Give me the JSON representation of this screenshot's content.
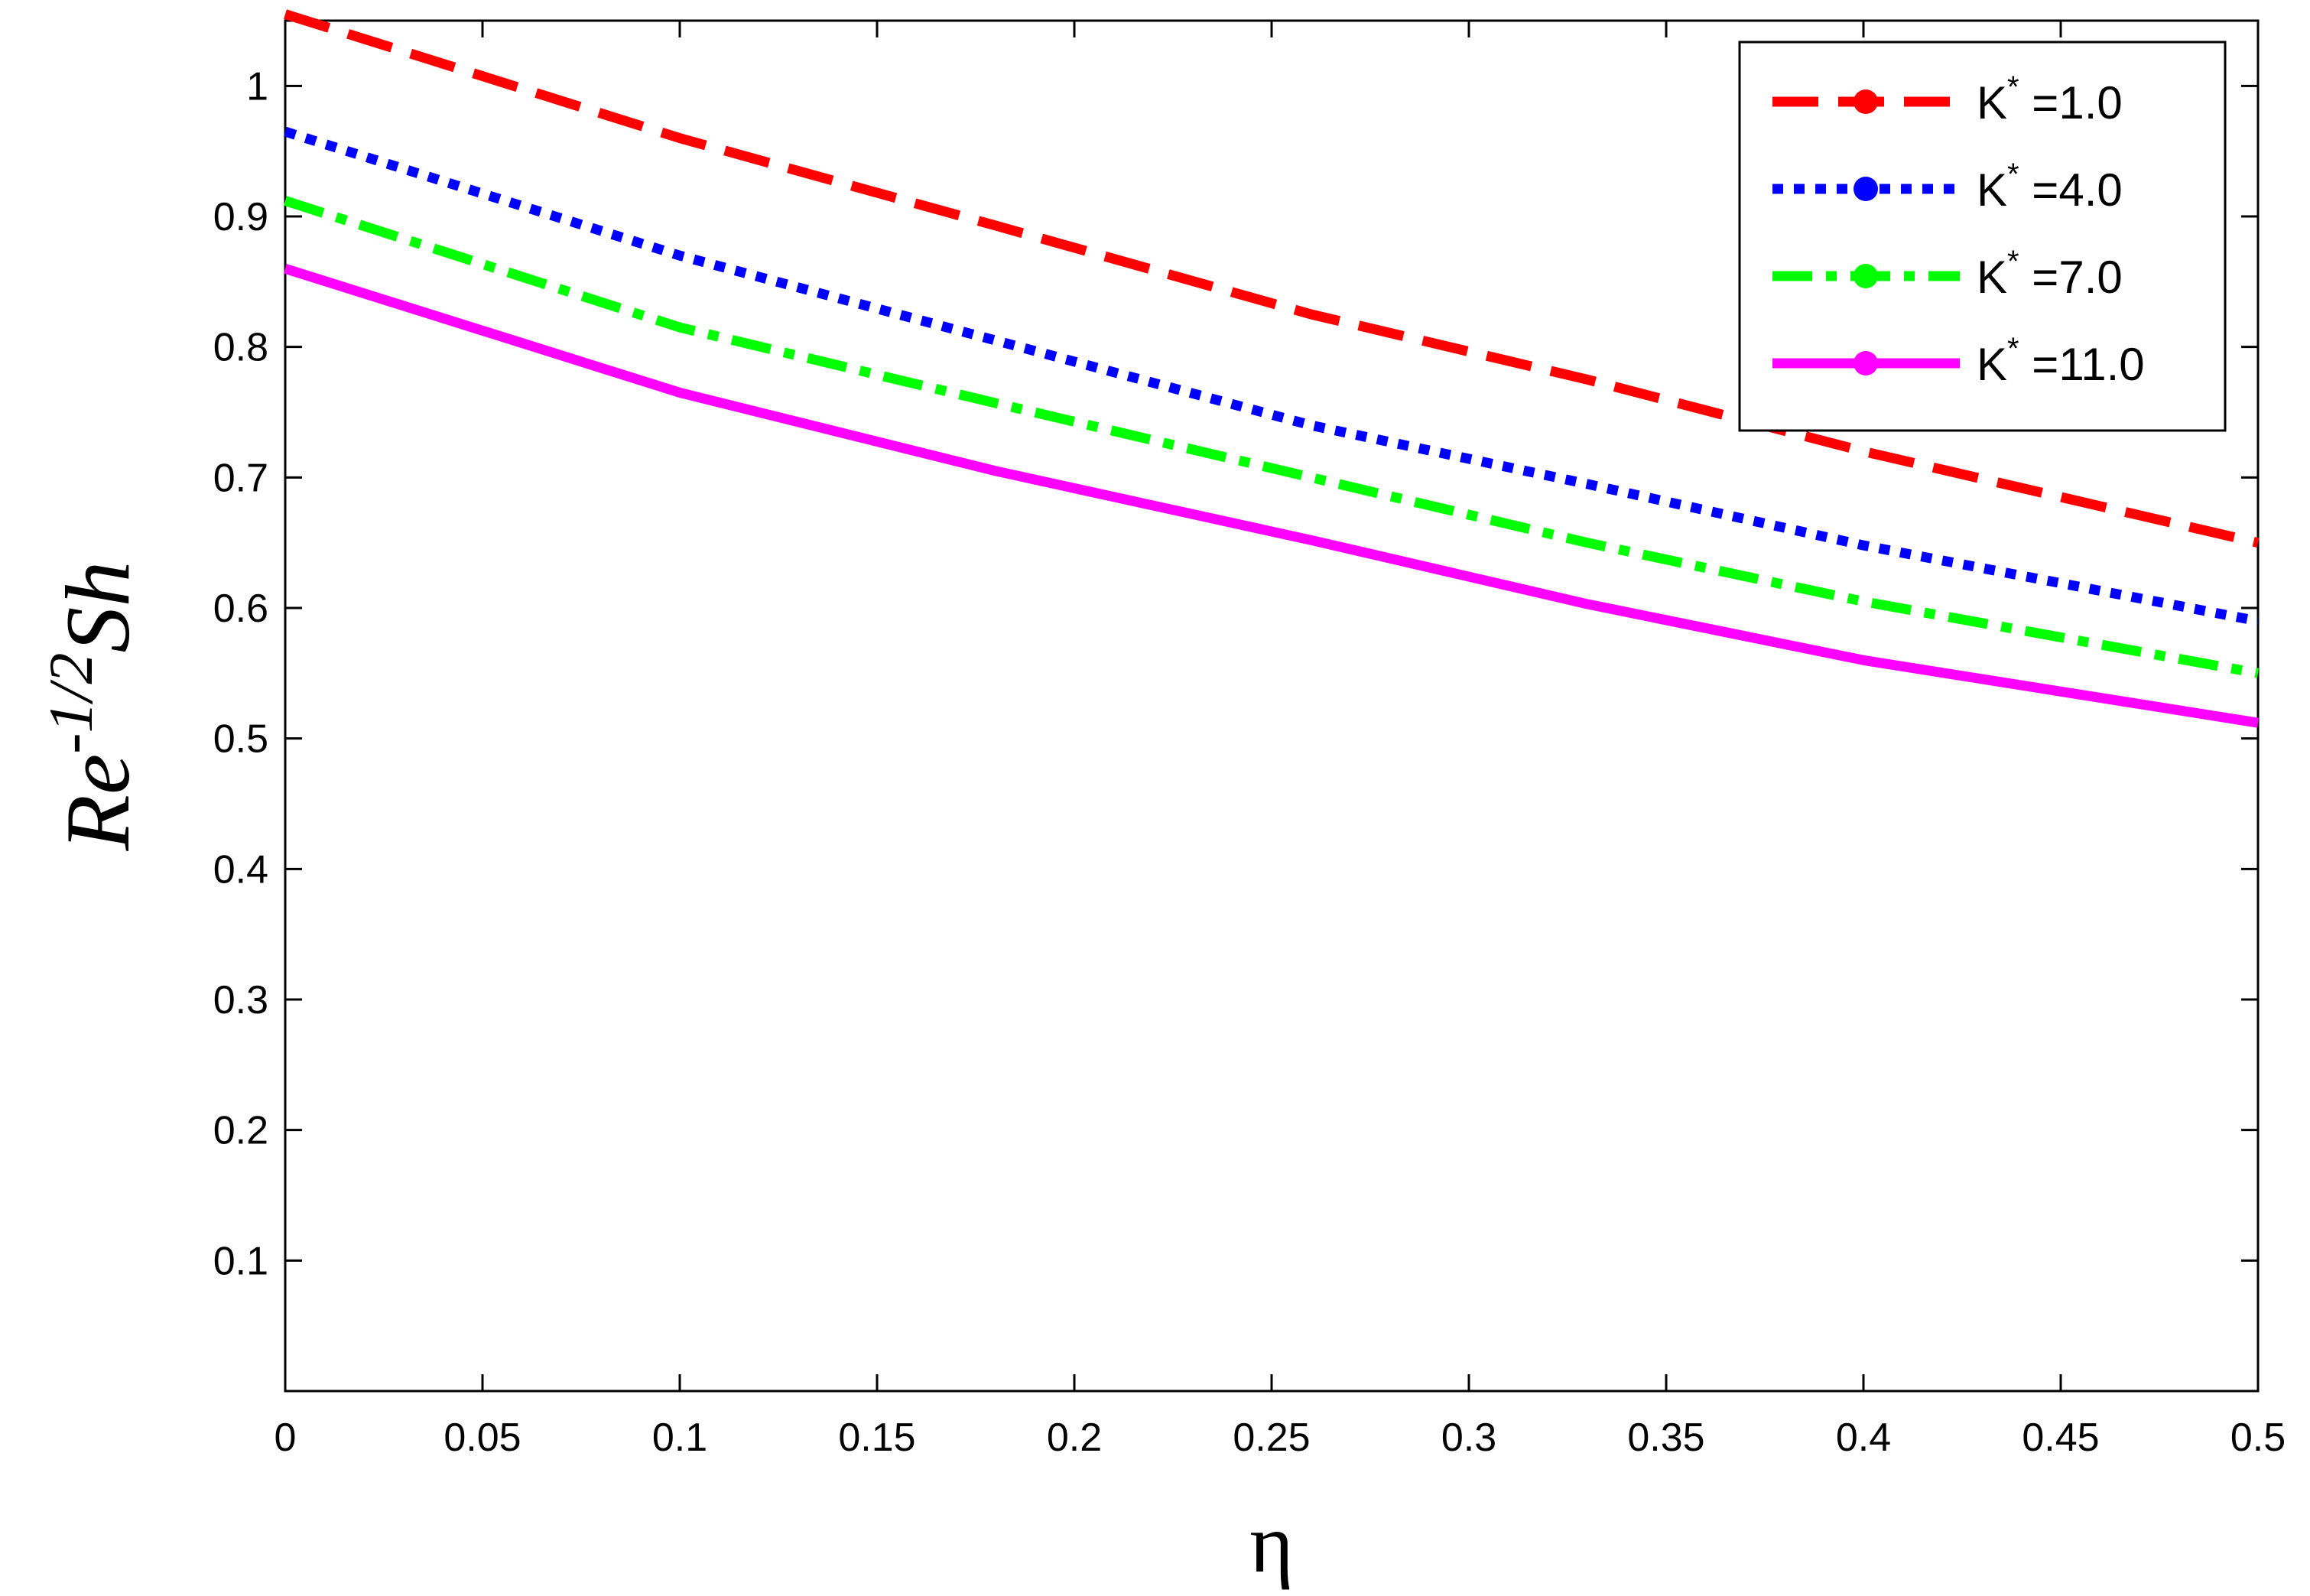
{
  "chart_data": {
    "type": "line",
    "title": "",
    "xlabel": "η",
    "ylabel": {
      "base": "Re",
      "exponent": "-1/2",
      "suffix": "Sh"
    },
    "xlim": [
      0,
      0.5
    ],
    "ylim": [
      0,
      1.05
    ],
    "xticks": [
      0,
      0.05,
      0.1,
      0.15,
      0.2,
      0.25,
      0.3,
      0.35,
      0.4,
      0.45,
      0.5
    ],
    "xtick_labels": [
      "0",
      "0.05",
      "0.1",
      "0.15",
      "0.2",
      "0.25",
      "0.3",
      "0.35",
      "0.4",
      "0.45",
      "0.5"
    ],
    "yticks": [
      0.1,
      0.2,
      0.3,
      0.4,
      0.5,
      0.6,
      0.7,
      0.8,
      0.9,
      1.0
    ],
    "ytick_labels": [
      "0.1",
      "0.2",
      "0.3",
      "0.4",
      "0.5",
      "0.6",
      "0.7",
      "0.8",
      "0.9",
      "1"
    ],
    "grid": false,
    "legend_position": "top-right",
    "x": [
      0,
      0.1,
      0.18,
      0.26,
      0.33,
      0.4,
      0.5
    ],
    "series": [
      {
        "name": "K* =1.0",
        "legend_base": "K",
        "legend_sup": "*",
        "legend_value": " =1.0",
        "color": "#ff0000",
        "style": "dashed",
        "values": [
          1.055,
          0.96,
          0.893,
          0.825,
          0.775,
          0.72,
          0.65
        ]
      },
      {
        "name": "K* =4.0",
        "legend_base": "K",
        "legend_sup": "*",
        "legend_value": " =4.0",
        "color": "#0000ff",
        "style": "dotted",
        "values": [
          0.965,
          0.87,
          0.805,
          0.74,
          0.695,
          0.648,
          0.59
        ]
      },
      {
        "name": "K* =7.0",
        "legend_base": "K",
        "legend_sup": "*",
        "legend_value": " =7.0",
        "color": "#00ff00",
        "style": "dashdot",
        "values": [
          0.912,
          0.815,
          0.757,
          0.7,
          0.65,
          0.605,
          0.55
        ]
      },
      {
        "name": "K* =11.0",
        "legend_base": "K",
        "legend_sup": "*",
        "legend_value": " =11.0",
        "color": "#ff00ff",
        "style": "solid",
        "values": [
          0.86,
          0.765,
          0.705,
          0.652,
          0.603,
          0.56,
          0.512
        ]
      }
    ]
  }
}
